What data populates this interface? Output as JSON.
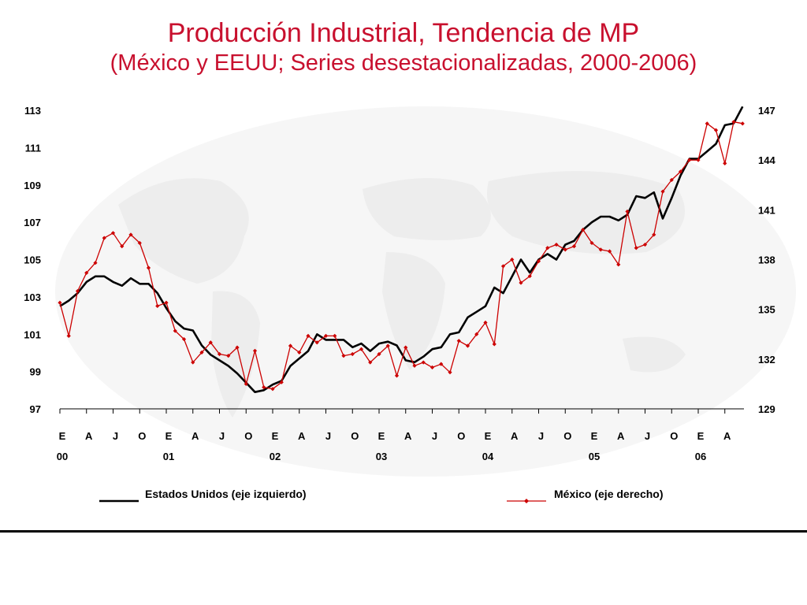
{
  "slide": {
    "title": "Producción Industrial, Tendencia de MP",
    "subtitle": "(México y EEUU; Series desestacionalizadas, 2000-2006)"
  },
  "chart_data": {
    "type": "line",
    "title": "Producción Industrial, Tendencia de MP",
    "subtitle": "(México y EEUU; Series desestacionalizadas, 2000-2006)",
    "month_labels": [
      "E",
      "A",
      "J",
      "O",
      "E",
      "A",
      "J",
      "O",
      "E",
      "A",
      "J",
      "O",
      "E",
      "A",
      "J",
      "O",
      "E",
      "A",
      "J",
      "O",
      "E",
      "A",
      "J",
      "O",
      "E",
      "A"
    ],
    "year_labels": [
      "00",
      "01",
      "02",
      "03",
      "04",
      "05",
      "06"
    ],
    "y_left": {
      "ticks": [
        "97",
        "99",
        "101",
        "103",
        "105",
        "107",
        "109",
        "111",
        "113"
      ],
      "range": [
        97,
        113
      ]
    },
    "y_right": {
      "ticks": [
        "129",
        "132",
        "135",
        "138",
        "141",
        "144",
        "147"
      ],
      "range": [
        129,
        147
      ]
    },
    "legend": [
      "Estados Unidos (eje izquierdo)",
      "México (eje derecho)"
    ],
    "colors": {
      "us": "#000000",
      "mexico": "#cc0000",
      "title": "#c8102e"
    },
    "series": [
      {
        "name": "Estados Unidos (eje izquierdo)",
        "axis": "left",
        "start": "2000-01",
        "values": [
          102.5,
          102.8,
          103.2,
          103.8,
          104.1,
          104.1,
          103.8,
          103.6,
          104.0,
          103.7,
          103.7,
          103.2,
          102.4,
          101.7,
          101.3,
          101.2,
          100.4,
          99.9,
          99.6,
          99.3,
          98.9,
          98.4,
          97.9,
          98.0,
          98.3,
          98.5,
          99.3,
          99.7,
          100.1,
          101.0,
          100.7,
          100.7,
          100.7,
          100.3,
          100.5,
          100.1,
          100.5,
          100.6,
          100.4,
          99.6,
          99.5,
          99.8,
          100.2,
          100.3,
          101.0,
          101.1,
          101.9,
          102.2,
          102.5,
          103.5,
          103.2,
          104.1,
          105.0,
          104.3,
          105.0,
          105.3,
          105.0,
          105.8,
          106.0,
          106.6,
          107.0,
          107.3,
          107.3,
          107.1,
          107.4,
          108.4,
          108.3,
          108.6,
          107.2,
          108.3,
          109.5,
          110.4,
          110.4,
          110.8,
          111.2,
          112.2,
          112.3,
          113.2
        ]
      },
      {
        "name": "México (eje derecho)",
        "axis": "right",
        "start": "2000-01",
        "values": [
          135.4,
          133.4,
          136.1,
          137.2,
          137.8,
          139.3,
          139.6,
          138.8,
          139.5,
          139.0,
          137.5,
          135.2,
          135.4,
          133.7,
          133.2,
          131.8,
          132.4,
          133.0,
          132.3,
          132.2,
          132.7,
          130.5,
          132.5,
          130.3,
          130.2,
          130.6,
          132.8,
          132.4,
          133.4,
          133.0,
          133.4,
          133.4,
          132.2,
          132.3,
          132.6,
          131.8,
          132.3,
          132.8,
          131.0,
          132.7,
          131.6,
          131.8,
          131.5,
          131.7,
          131.2,
          133.1,
          132.8,
          133.5,
          134.2,
          132.9,
          137.6,
          138.0,
          136.6,
          137.0,
          137.9,
          138.7,
          138.9,
          138.6,
          138.8,
          139.8,
          139.0,
          138.6,
          138.5,
          137.7,
          140.9,
          138.7,
          138.9,
          139.5,
          142.1,
          142.8,
          143.3,
          144.0,
          144.0,
          146.2,
          145.8,
          143.8,
          146.3,
          146.2
        ]
      }
    ],
    "grid": false
  }
}
